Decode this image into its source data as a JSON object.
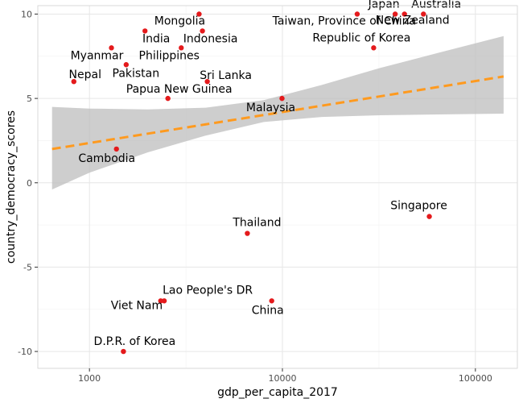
{
  "chart_data": {
    "type": "scatter",
    "xlabel": "gdp_per_capita_2017",
    "ylabel": "country_democracy_scores",
    "x_scale": "log10",
    "xlim": [
      540,
      165000
    ],
    "ylim": [
      -11,
      10.5
    ],
    "x_ticks": [
      1000,
      10000,
      100000
    ],
    "x_tick_labels": [
      "1000",
      "10000",
      "100000"
    ],
    "y_ticks": [
      -10,
      -5,
      0,
      5,
      10
    ],
    "y_tick_labels": [
      "-10",
      "-5",
      "0",
      "5",
      "10"
    ],
    "grid": true,
    "colors": {
      "point": "#e41a1c",
      "trend": "#ff9a1f",
      "band": "#bdbdbd",
      "grid_major": "#e6e6e6",
      "grid_minor": "#f2f2f2",
      "panel_border": "#d9d9d9"
    },
    "points": [
      {
        "label": "Japan",
        "x": 38400,
        "y": 10
      },
      {
        "label": "Australia",
        "x": 53800,
        "y": 10
      },
      {
        "label": "New Zealand",
        "x": 42900,
        "y": 10
      },
      {
        "label": "Taiwan, Province of China",
        "x": 24400,
        "y": 10
      },
      {
        "label": "Mongolia",
        "x": 3700,
        "y": 10
      },
      {
        "label": "Indonesia",
        "x": 3850,
        "y": 9
      },
      {
        "label": "India",
        "x": 1940,
        "y": 9
      },
      {
        "label": "Philippines",
        "x": 2990,
        "y": 8
      },
      {
        "label": "Myanmar",
        "x": 1300,
        "y": 8
      },
      {
        "label": "Republic of Korea",
        "x": 29700,
        "y": 8
      },
      {
        "label": "Pakistan",
        "x": 1550,
        "y": 7
      },
      {
        "label": "Nepal",
        "x": 830,
        "y": 6
      },
      {
        "label": "Sri Lanka",
        "x": 4080,
        "y": 6
      },
      {
        "label": "Papua New Guinea",
        "x": 2550,
        "y": 5
      },
      {
        "label": "Malaysia",
        "x": 9950,
        "y": 5
      },
      {
        "label": "Cambodia",
        "x": 1380,
        "y": 2
      },
      {
        "label": "Singapore",
        "x": 57700,
        "y": -2
      },
      {
        "label": "Thailand",
        "x": 6580,
        "y": -3
      },
      {
        "label": "Lao People's DR",
        "x": 2440,
        "y": -7
      },
      {
        "label": "Viet Nam",
        "x": 2340,
        "y": -7
      },
      {
        "label": "China",
        "x": 8800,
        "y": -7
      },
      {
        "label": "D.P.R. of Korea",
        "x": 1500,
        "y": -10
      }
    ],
    "trend": {
      "x": [
        640,
        140000
      ],
      "y": [
        2.0,
        6.3
      ]
    },
    "confidence_band": {
      "x": [
        640,
        1000,
        2000,
        4000,
        8000,
        16000,
        32000,
        64000,
        140000
      ],
      "upper": [
        4.5,
        4.4,
        4.35,
        4.45,
        4.9,
        5.8,
        6.8,
        7.7,
        8.7
      ],
      "lower": [
        -0.4,
        0.6,
        1.8,
        2.8,
        3.6,
        3.9,
        4.0,
        4.05,
        4.1
      ]
    }
  }
}
